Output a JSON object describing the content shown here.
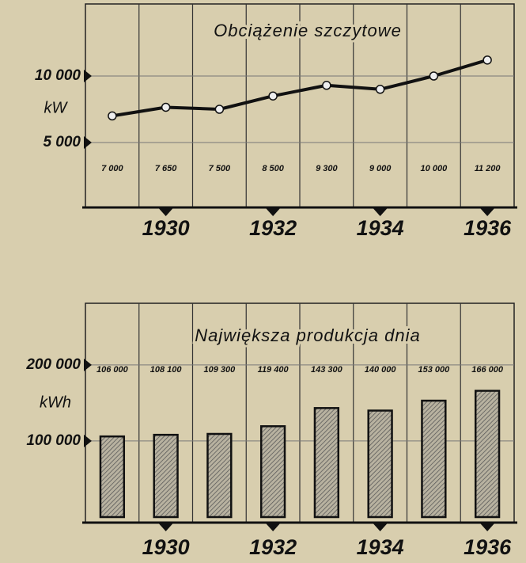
{
  "chart_data": [
    {
      "type": "line",
      "title": "Obciążenie szczytowe",
      "y_label": "kW",
      "categories": [
        null,
        "1930",
        null,
        "1932",
        null,
        "1934",
        null,
        "1936"
      ],
      "values": [
        7000,
        7650,
        7500,
        8500,
        9300,
        9000,
        10000,
        11200
      ],
      "value_labels": [
        "7 000",
        "7 650",
        "7 500",
        "8 500",
        "9 300",
        "9 000",
        "10 000",
        "11 200"
      ],
      "color": "#111111",
      "ylim": [
        0,
        15000
      ],
      "yticks": [
        {
          "value": 5000,
          "label": "5 000"
        },
        {
          "value": 10000,
          "label": "10 000"
        }
      ],
      "grid": true
    },
    {
      "type": "bar",
      "title": "Największa produkcja dnia",
      "y_label": "kWh",
      "categories": [
        null,
        "1930",
        null,
        "1932",
        null,
        "1934",
        null,
        "1936"
      ],
      "values": [
        106000,
        108100,
        109300,
        119400,
        143300,
        140000,
        153000,
        166000
      ],
      "value_labels": [
        "106 000",
        "108 100",
        "109 300",
        "119 400",
        "143 300",
        "140 000",
        "153 000",
        "166 000"
      ],
      "color": "#8a8576",
      "ylim": [
        0,
        280000
      ],
      "yticks": [
        {
          "value": 100000,
          "label": "100 000"
        },
        {
          "value": 200000,
          "label": "200 000"
        }
      ],
      "grid": true
    }
  ]
}
